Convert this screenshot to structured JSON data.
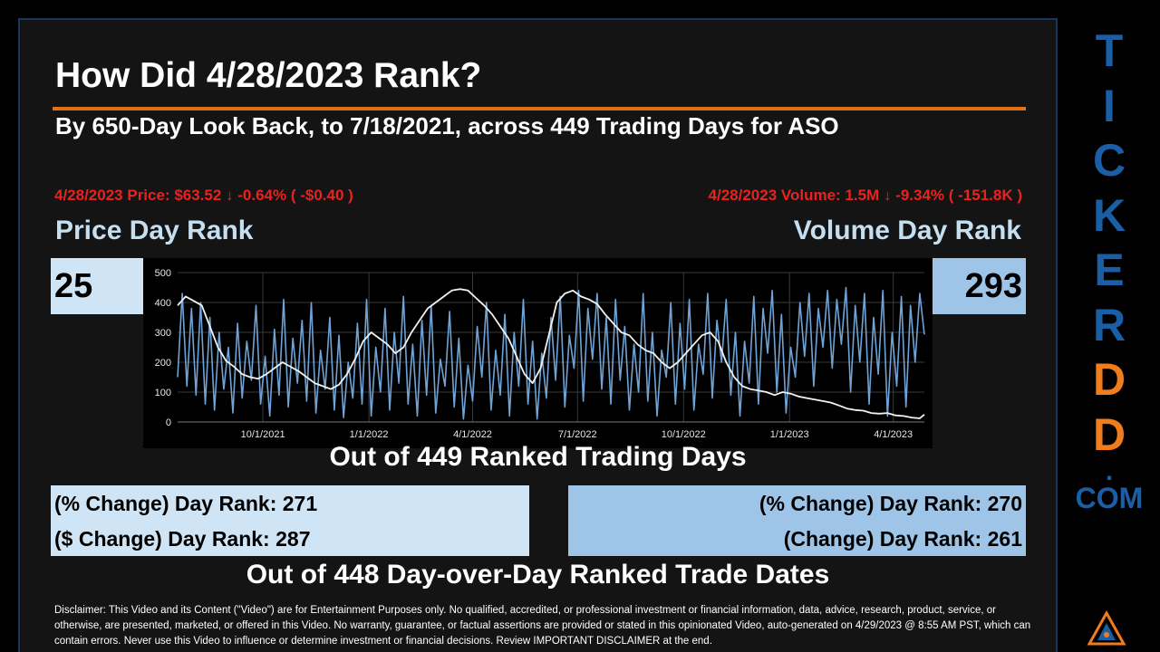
{
  "header": {
    "title": "How Did 4/28/2023 Rank?",
    "subtitle": "By 650-Day Look Back, to 7/18/2021, across 449 Trading Days for ASO"
  },
  "price": {
    "summary": "4/28/2023 Price: $63.52 ↓ -0.64% ( -$0.40 )",
    "label": "Price Day Rank",
    "rank": "25"
  },
  "volume": {
    "summary": "4/28/2023 Volume: 1.5M ↓ -9.34% ( -151.8K )",
    "label": "Volume Day Rank",
    "rank": "293"
  },
  "out_of_days": "Out of 449 Ranked Trading Days",
  "left_changes": {
    "pct": "(% Change) Day Rank: 271",
    "dollar": "($ Change) Day Rank: 287"
  },
  "right_changes": {
    "pct": "(% Change) Day Rank: 270",
    "change": "(Change) Day Rank: 261"
  },
  "out_of_trade_dates": "Out of 448 Day-over-Day Ranked Trade Dates",
  "disclaimer": "Disclaimer: This Video and its Content (\"Video\") are for Entertainment Purposes only. No qualified, accredited, or professional investment or financial information, data, advice, research, product, service, or otherwise, are presented, marketed, or offered in this Video. No warranty, guarantee, or factual assertions are provided or stated in this opinionated Video, auto-generated on 4/29/2023 @ 8:55 AM PST, which can contain errors. Never use this Video to influence or determine investment or financial decisions. Review IMPORTANT DISCLAIMER at the end.",
  "brand": {
    "letters": [
      "T",
      "I",
      "C",
      "K",
      "E",
      "R",
      "D",
      "D"
    ],
    "dot": ".",
    "com": "COM",
    "logo_icon": "triangle-logo-icon"
  },
  "colors": {
    "accent_orange": "#e0701a",
    "alert_red": "#e8231f",
    "brand_blue": "#1a5fa5",
    "brand_orange": "#f07c1c",
    "price_series": "#f2f2f2",
    "volume_series": "#6fa3d6",
    "left_box": "#cfe4f4",
    "right_box": "#9ec5e8"
  },
  "chart_data": {
    "type": "line",
    "ylim": [
      0,
      500
    ],
    "y_ticks": [
      "0",
      "100",
      "200",
      "300",
      "400",
      "500"
    ],
    "x_ticks": [
      "10/1/2021",
      "1/1/2022",
      "4/1/2022",
      "7/1/2022",
      "10/1/2022",
      "1/1/2023",
      "4/1/2023"
    ],
    "x_range": [
      "2021-07-19",
      "2023-04-28"
    ],
    "grid": true,
    "series": [
      {
        "color": "#f2f2f2",
        "points": [
          [
            "2021-07-19",
            390
          ],
          [
            "2021-07-26",
            420
          ],
          [
            "2021-08-02",
            405
          ],
          [
            "2021-08-09",
            390
          ],
          [
            "2021-08-16",
            320
          ],
          [
            "2021-08-23",
            250
          ],
          [
            "2021-08-30",
            205
          ],
          [
            "2021-09-06",
            185
          ],
          [
            "2021-09-13",
            160
          ],
          [
            "2021-09-20",
            150
          ],
          [
            "2021-09-27",
            145
          ],
          [
            "2021-10-04",
            160
          ],
          [
            "2021-10-11",
            180
          ],
          [
            "2021-10-18",
            200
          ],
          [
            "2021-10-25",
            185
          ],
          [
            "2021-11-01",
            170
          ],
          [
            "2021-11-08",
            150
          ],
          [
            "2021-11-15",
            130
          ],
          [
            "2021-11-22",
            120
          ],
          [
            "2021-11-29",
            110
          ],
          [
            "2021-12-06",
            125
          ],
          [
            "2021-12-13",
            160
          ],
          [
            "2021-12-20",
            210
          ],
          [
            "2021-12-27",
            270
          ],
          [
            "2022-01-03",
            300
          ],
          [
            "2022-01-10",
            280
          ],
          [
            "2022-01-17",
            260
          ],
          [
            "2022-01-24",
            230
          ],
          [
            "2022-01-31",
            250
          ],
          [
            "2022-02-07",
            300
          ],
          [
            "2022-02-14",
            340
          ],
          [
            "2022-02-21",
            380
          ],
          [
            "2022-02-28",
            400
          ],
          [
            "2022-03-07",
            420
          ],
          [
            "2022-03-14",
            440
          ],
          [
            "2022-03-21",
            445
          ],
          [
            "2022-03-28",
            440
          ],
          [
            "2022-04-04",
            415
          ],
          [
            "2022-04-11",
            390
          ],
          [
            "2022-04-18",
            360
          ],
          [
            "2022-04-25",
            320
          ],
          [
            "2022-05-02",
            280
          ],
          [
            "2022-05-09",
            220
          ],
          [
            "2022-05-16",
            160
          ],
          [
            "2022-05-23",
            130
          ],
          [
            "2022-05-30",
            180
          ],
          [
            "2022-06-06",
            290
          ],
          [
            "2022-06-13",
            400
          ],
          [
            "2022-06-20",
            430
          ],
          [
            "2022-06-27",
            440
          ],
          [
            "2022-07-04",
            420
          ],
          [
            "2022-07-11",
            410
          ],
          [
            "2022-07-18",
            395
          ],
          [
            "2022-07-25",
            360
          ],
          [
            "2022-08-01",
            330
          ],
          [
            "2022-08-08",
            300
          ],
          [
            "2022-08-15",
            290
          ],
          [
            "2022-08-22",
            260
          ],
          [
            "2022-08-29",
            240
          ],
          [
            "2022-09-05",
            230
          ],
          [
            "2022-09-12",
            200
          ],
          [
            "2022-09-19",
            180
          ],
          [
            "2022-09-26",
            200
          ],
          [
            "2022-10-03",
            230
          ],
          [
            "2022-10-10",
            260
          ],
          [
            "2022-10-17",
            290
          ],
          [
            "2022-10-24",
            300
          ],
          [
            "2022-10-31",
            270
          ],
          [
            "2022-11-07",
            200
          ],
          [
            "2022-11-14",
            150
          ],
          [
            "2022-11-21",
            120
          ],
          [
            "2022-11-28",
            110
          ],
          [
            "2022-12-05",
            105
          ],
          [
            "2022-12-12",
            100
          ],
          [
            "2022-12-19",
            90
          ],
          [
            "2022-12-26",
            100
          ],
          [
            "2023-01-02",
            95
          ],
          [
            "2023-01-09",
            85
          ],
          [
            "2023-01-16",
            80
          ],
          [
            "2023-01-23",
            75
          ],
          [
            "2023-01-30",
            70
          ],
          [
            "2023-02-06",
            65
          ],
          [
            "2023-02-13",
            55
          ],
          [
            "2023-02-20",
            45
          ],
          [
            "2023-02-27",
            40
          ],
          [
            "2023-03-06",
            38
          ],
          [
            "2023-03-13",
            30
          ],
          [
            "2023-03-20",
            28
          ],
          [
            "2023-03-27",
            30
          ],
          [
            "2023-04-03",
            22
          ],
          [
            "2023-04-10",
            20
          ],
          [
            "2023-04-17",
            15
          ],
          [
            "2023-04-24",
            12
          ],
          [
            "2023-04-28",
            25
          ]
        ]
      },
      {
        "color": "#6fa3d6",
        "points": [
          [
            "2021-07-19",
            150
          ],
          [
            "2021-07-23",
            430
          ],
          [
            "2021-07-27",
            120
          ],
          [
            "2021-07-31",
            380
          ],
          [
            "2021-08-04",
            90
          ],
          [
            "2021-08-08",
            400
          ],
          [
            "2021-08-12",
            60
          ],
          [
            "2021-08-16",
            350
          ],
          [
            "2021-08-20",
            40
          ],
          [
            "2021-08-24",
            300
          ],
          [
            "2021-08-28",
            110
          ],
          [
            "2021-09-01",
            250
          ],
          [
            "2021-09-05",
            30
          ],
          [
            "2021-09-09",
            330
          ],
          [
            "2021-09-13",
            80
          ],
          [
            "2021-09-17",
            270
          ],
          [
            "2021-09-21",
            140
          ],
          [
            "2021-09-25",
            390
          ],
          [
            "2021-09-29",
            60
          ],
          [
            "2021-10-03",
            220
          ],
          [
            "2021-10-07",
            20
          ],
          [
            "2021-10-11",
            310
          ],
          [
            "2021-10-15",
            90
          ],
          [
            "2021-10-19",
            410
          ],
          [
            "2021-10-23",
            50
          ],
          [
            "2021-10-27",
            280
          ],
          [
            "2021-10-31",
            130
          ],
          [
            "2021-11-04",
            340
          ],
          [
            "2021-11-08",
            70
          ],
          [
            "2021-11-12",
            400
          ],
          [
            "2021-11-16",
            30
          ],
          [
            "2021-11-20",
            240
          ],
          [
            "2021-11-24",
            110
          ],
          [
            "2021-11-28",
            350
          ],
          [
            "2021-12-02",
            40
          ],
          [
            "2021-12-06",
            290
          ],
          [
            "2021-12-10",
            15
          ],
          [
            "2021-12-14",
            200
          ],
          [
            "2021-12-18",
            80
          ],
          [
            "2021-12-22",
            330
          ],
          [
            "2021-12-26",
            60
          ],
          [
            "2021-12-30",
            410
          ],
          [
            "2022-01-03",
            20
          ],
          [
            "2022-01-07",
            250
          ],
          [
            "2022-01-11",
            100
          ],
          [
            "2022-01-15",
            380
          ],
          [
            "2022-01-19",
            40
          ],
          [
            "2022-01-23",
            300
          ],
          [
            "2022-01-27",
            130
          ],
          [
            "2022-01-31",
            420
          ],
          [
            "2022-02-04",
            60
          ],
          [
            "2022-02-08",
            260
          ],
          [
            "2022-02-12",
            20
          ],
          [
            "2022-02-16",
            340
          ],
          [
            "2022-02-20",
            90
          ],
          [
            "2022-02-24",
            390
          ],
          [
            "2022-02-28",
            30
          ],
          [
            "2022-03-04",
            210
          ],
          [
            "2022-03-08",
            120
          ],
          [
            "2022-03-12",
            370
          ],
          [
            "2022-03-16",
            50
          ],
          [
            "2022-03-20",
            280
          ],
          [
            "2022-03-24",
            10
          ],
          [
            "2022-03-28",
            190
          ],
          [
            "2022-04-01",
            70
          ],
          [
            "2022-04-05",
            320
          ],
          [
            "2022-04-09",
            150
          ],
          [
            "2022-04-13",
            400
          ],
          [
            "2022-04-17",
            40
          ],
          [
            "2022-04-21",
            240
          ],
          [
            "2022-04-25",
            90
          ],
          [
            "2022-04-29",
            360
          ],
          [
            "2022-05-03",
            20
          ],
          [
            "2022-05-07",
            300
          ],
          [
            "2022-05-11",
            120
          ],
          [
            "2022-05-15",
            410
          ],
          [
            "2022-05-19",
            60
          ],
          [
            "2022-05-23",
            270
          ],
          [
            "2022-05-27",
            10
          ],
          [
            "2022-05-31",
            230
          ],
          [
            "2022-06-04",
            80
          ],
          [
            "2022-06-08",
            350
          ],
          [
            "2022-06-12",
            140
          ],
          [
            "2022-06-16",
            420
          ],
          [
            "2022-06-20",
            50
          ],
          [
            "2022-06-24",
            290
          ],
          [
            "2022-06-28",
            180
          ],
          [
            "2022-07-02",
            440
          ],
          [
            "2022-07-06",
            70
          ],
          [
            "2022-07-10",
            380
          ],
          [
            "2022-07-14",
            210
          ],
          [
            "2022-07-18",
            430
          ],
          [
            "2022-07-22",
            110
          ],
          [
            "2022-07-26",
            350
          ],
          [
            "2022-07-30",
            60
          ],
          [
            "2022-08-03",
            410
          ],
          [
            "2022-08-07",
            140
          ],
          [
            "2022-08-11",
            320
          ],
          [
            "2022-08-15",
            40
          ],
          [
            "2022-08-19",
            260
          ],
          [
            "2022-08-23",
            100
          ],
          [
            "2022-08-27",
            430
          ],
          [
            "2022-08-31",
            70
          ],
          [
            "2022-09-04",
            300
          ],
          [
            "2022-09-08",
            20
          ],
          [
            "2022-09-12",
            240
          ],
          [
            "2022-09-16",
            150
          ],
          [
            "2022-09-20",
            400
          ],
          [
            "2022-09-24",
            60
          ],
          [
            "2022-09-28",
            330
          ],
          [
            "2022-10-02",
            110
          ],
          [
            "2022-10-06",
            410
          ],
          [
            "2022-10-10",
            40
          ],
          [
            "2022-10-14",
            260
          ],
          [
            "2022-10-18",
            160
          ],
          [
            "2022-10-22",
            430
          ],
          [
            "2022-10-26",
            80
          ],
          [
            "2022-10-30",
            340
          ],
          [
            "2022-11-03",
            200
          ],
          [
            "2022-11-07",
            410
          ],
          [
            "2022-11-11",
            90
          ],
          [
            "2022-11-15",
            300
          ],
          [
            "2022-11-19",
            20
          ],
          [
            "2022-11-23",
            270
          ],
          [
            "2022-11-27",
            130
          ],
          [
            "2022-12-01",
            420
          ],
          [
            "2022-12-05",
            60
          ],
          [
            "2022-12-09",
            380
          ],
          [
            "2022-12-13",
            230
          ],
          [
            "2022-12-17",
            440
          ],
          [
            "2022-12-21",
            100
          ],
          [
            "2022-12-25",
            360
          ],
          [
            "2022-12-29",
            30
          ],
          [
            "2023-01-02",
            250
          ],
          [
            "2023-01-06",
            150
          ],
          [
            "2023-01-10",
            400
          ],
          [
            "2023-01-14",
            220
          ],
          [
            "2023-01-18",
            430
          ],
          [
            "2023-01-22",
            120
          ],
          [
            "2023-01-26",
            380
          ],
          [
            "2023-01-30",
            250
          ],
          [
            "2023-02-03",
            440
          ],
          [
            "2023-02-07",
            180
          ],
          [
            "2023-02-11",
            410
          ],
          [
            "2023-02-15",
            260
          ],
          [
            "2023-02-19",
            450
          ],
          [
            "2023-02-23",
            100
          ],
          [
            "2023-02-27",
            390
          ],
          [
            "2023-03-03",
            200
          ],
          [
            "2023-03-07",
            430
          ],
          [
            "2023-03-11",
            60
          ],
          [
            "2023-03-15",
            350
          ],
          [
            "2023-03-19",
            160
          ],
          [
            "2023-03-23",
            440
          ],
          [
            "2023-03-27",
            20
          ],
          [
            "2023-03-31",
            300
          ],
          [
            "2023-04-04",
            120
          ],
          [
            "2023-04-08",
            420
          ],
          [
            "2023-04-12",
            50
          ],
          [
            "2023-04-16",
            390
          ],
          [
            "2023-04-20",
            200
          ],
          [
            "2023-04-24",
            430
          ],
          [
            "2023-04-28",
            293
          ]
        ]
      }
    ]
  }
}
